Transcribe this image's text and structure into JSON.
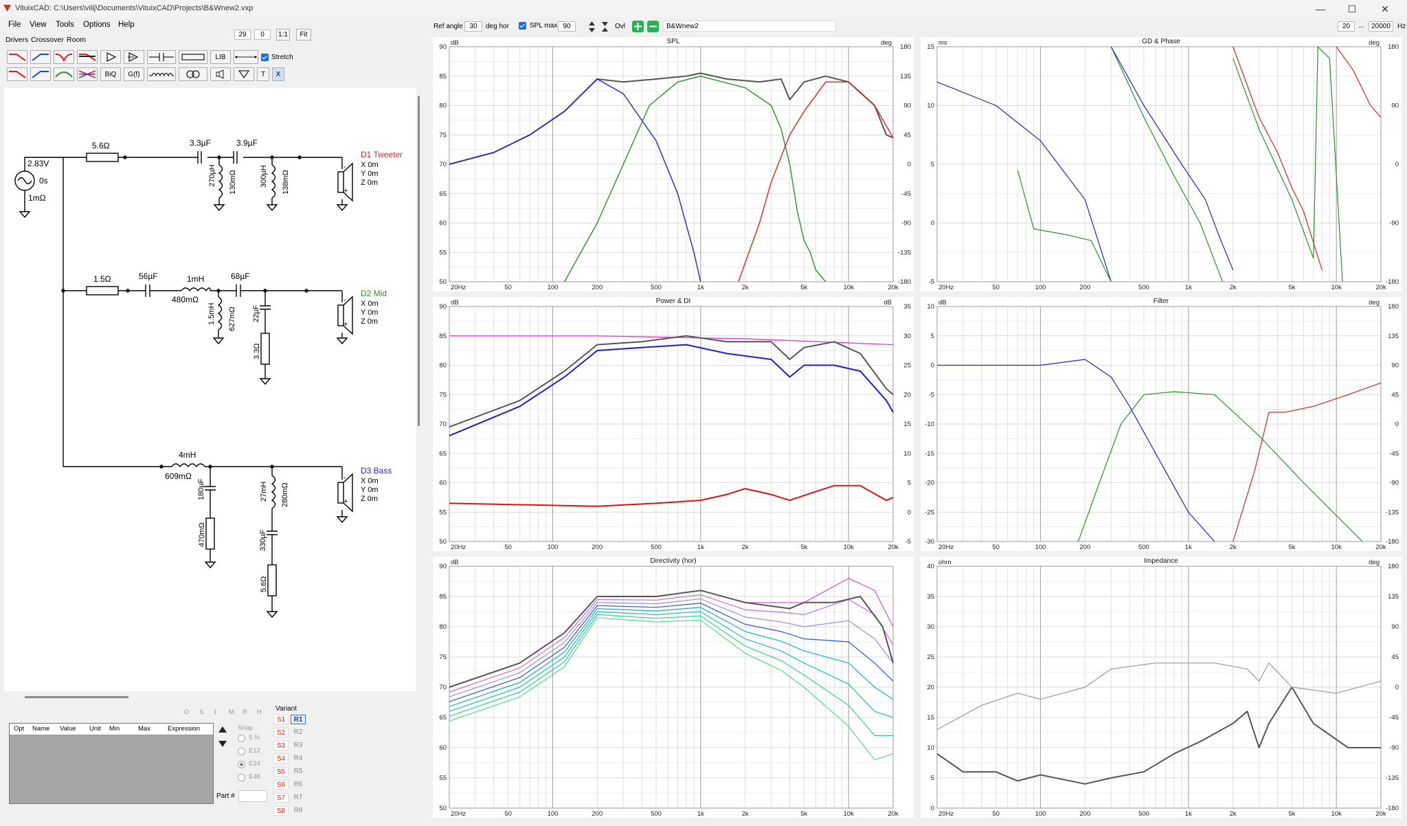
{
  "window": {
    "title": "VituixCAD: C:\\Users\\vilij\\Documents\\VituixCAD\\Projects\\B&Wnew2.vxp",
    "controls": [
      "—",
      "☐",
      "✕"
    ]
  },
  "menu": [
    "File",
    "View",
    "Tools",
    "Options",
    "Help"
  ],
  "tabs": [
    "Drivers",
    "Crossover",
    "Room"
  ],
  "zoom": {
    "v1": "29",
    "v2": "0",
    "ratio": "1:1",
    "fit": "Fit"
  },
  "toolbar": {
    "lib": "LIB",
    "biq": "BiQ",
    "gf": "G(f)",
    "t": "T",
    "x": "X",
    "stretch": "Stretch"
  },
  "top_controls": {
    "ref_angle_label": "Ref angle",
    "ref_angle": "30",
    "deg_hor": "deg hor",
    "spl_max_label": "SPL max",
    "spl_max": "90",
    "ovl": "Ovl",
    "variant_name": "B&Wnew2",
    "f_min": "20",
    "ellipsis": "...",
    "f_max": "20000",
    "hz": "Hz"
  },
  "schematic": {
    "source": {
      "v": "2.83V",
      "t": "0s",
      "r": "1mΩ"
    },
    "tweeter": {
      "name": "D1 Tweeter",
      "color": "#e02020",
      "x": "X 0m",
      "y": "Y 0m",
      "z": "Z 0m"
    },
    "mid": {
      "name": "D2 Mid",
      "color": "#2a8f2a",
      "x": "X 0m",
      "y": "Y 0m",
      "z": "Z 0m"
    },
    "bass": {
      "name": "D3 Bass",
      "color": "#2222cc",
      "x": "X 0m",
      "y": "Y 0m",
      "z": "Z 0m"
    },
    "parts": {
      "r56": "5.6Ω",
      "c33": "3.3µF",
      "c39": "3.9µF",
      "l270": "270µH",
      "r130": "130mΩ",
      "l300": "300µH",
      "r138": "138mΩ",
      "r15": "1.5Ω",
      "c56": "56µF",
      "l1": "1mH",
      "r480": "480mΩ",
      "c68": "68µF",
      "l15": "1.5mH",
      "r627": "627mΩ",
      "c22": "22µF",
      "r33": "3.3Ω",
      "l4": "4mH",
      "r609": "609mΩ",
      "c180": "180µF",
      "r470": "470mΩ",
      "l27": "27mH",
      "r280": "280mΩ",
      "c330": "330µF",
      "r56b": "5.6Ω",
      "plus": "+",
      "minus": "-"
    }
  },
  "params_table": {
    "headers": [
      "Opt",
      "Name",
      "Value",
      "Unit",
      "Min",
      "Max",
      "Expression"
    ],
    "mode_buttons": [
      "O",
      "S",
      "I",
      "M",
      "R",
      "H"
    ],
    "snap_label": "Snap",
    "snap_options": [
      "5 %",
      "E12",
      "E24",
      "E48"
    ],
    "part_label": "Part #",
    "variant_label": "Variant",
    "variants_s": [
      "S1",
      "S2",
      "S3",
      "S4",
      "S5",
      "S6",
      "S7",
      "S8"
    ],
    "variants_r": [
      "R1",
      "R2",
      "R3",
      "R4",
      "R5",
      "R6",
      "R7",
      "R8"
    ]
  },
  "charts": {
    "freq_ticks": [
      "20Hz",
      "50",
      "100",
      "200",
      "500",
      "1k",
      "2k",
      "5k",
      "10k",
      "20k"
    ],
    "spl": {
      "title": "SPL",
      "left_unit": "dB",
      "right_unit": "deg",
      "left_ticks": [
        "90",
        "85",
        "80",
        "75",
        "70",
        "65",
        "60",
        "55",
        "50"
      ],
      "right_ticks": [
        "180",
        "135",
        "90",
        "45",
        "0",
        "-45",
        "-90",
        "-135",
        "-180"
      ]
    },
    "gd": {
      "title": "GD & Phase",
      "left_unit": "ms",
      "right_unit": "deg",
      "left_ticks": [
        "15",
        "10",
        "5",
        "0",
        "-5"
      ],
      "right_ticks": [
        "180",
        "90",
        "0",
        "-90",
        "-180"
      ]
    },
    "power": {
      "title": "Power & DI",
      "left_unit": "dB",
      "right_unit": "dB",
      "left_ticks": [
        "90",
        "85",
        "80",
        "75",
        "70",
        "65",
        "60",
        "55",
        "50"
      ],
      "right_ticks": [
        "35",
        "30",
        "25",
        "20",
        "15",
        "10",
        "5",
        "0",
        "-5"
      ]
    },
    "filter": {
      "title": "Filter",
      "left_unit": "dB",
      "right_unit": "deg",
      "left_ticks": [
        "10",
        "5",
        "0",
        "-5",
        "-10",
        "-15",
        "-20",
        "-25",
        "-30"
      ],
      "right_ticks": [
        "180",
        "135",
        "90",
        "45",
        "0",
        "-45",
        "-90",
        "-135",
        "-180"
      ]
    },
    "directivity": {
      "title": "Directivity (hor)",
      "left_unit": "dB",
      "left_ticks": [
        "90",
        "85",
        "80",
        "75",
        "70",
        "65",
        "60",
        "55",
        "50"
      ]
    },
    "impedance": {
      "title": "Impedance",
      "left_unit": "ohm",
      "right_unit": "deg",
      "left_ticks": [
        "40",
        "35",
        "30",
        "25",
        "20",
        "15",
        "10",
        "5",
        "0"
      ],
      "right_ticks": [
        "180",
        "135",
        "90",
        "45",
        "0",
        "-45",
        "-90",
        "-135",
        "-180"
      ]
    }
  },
  "colors": {
    "tweeter": "#e02020",
    "mid": "#2a8f2a",
    "bass": "#2222cc",
    "sum": "#555555",
    "di": "#e01010",
    "pir": "#1a1ae0",
    "listening": "#e040e0"
  }
}
